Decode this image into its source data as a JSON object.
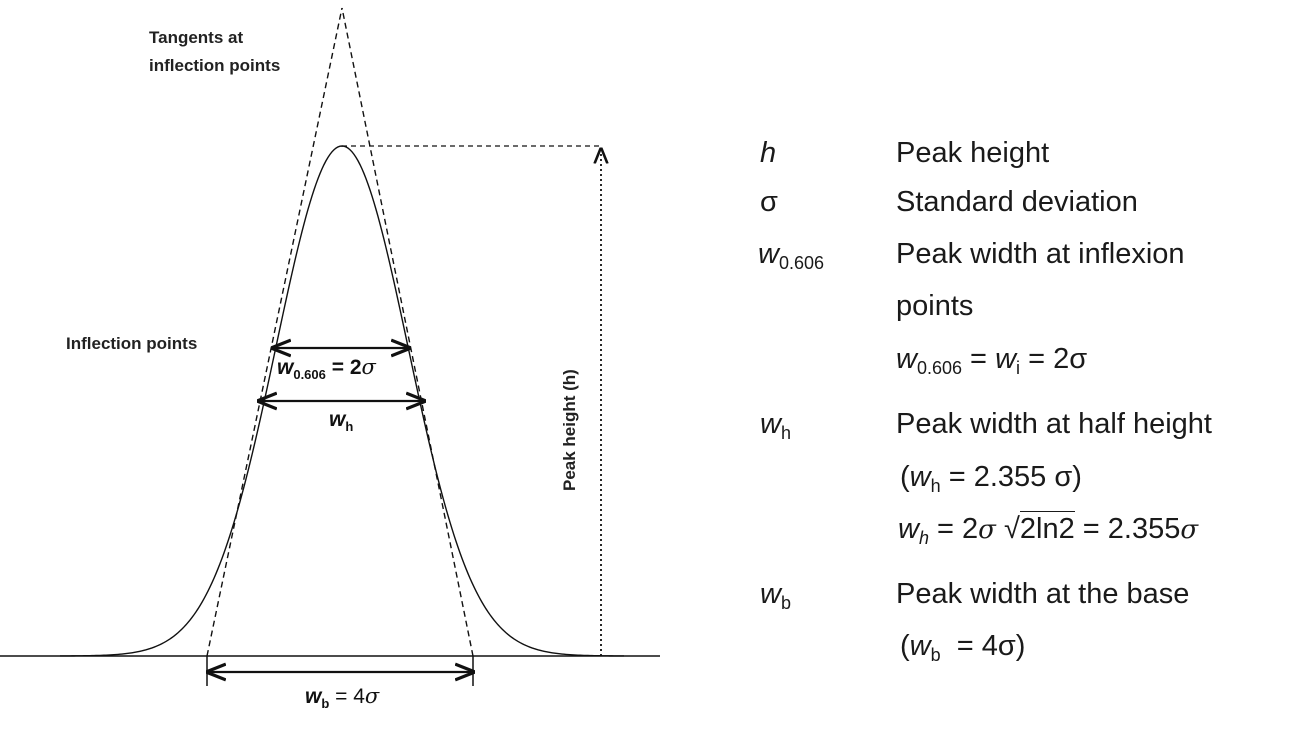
{
  "diagram": {
    "annotations": {
      "tangents_line1": "Tangents at",
      "tangents_line2": "inflection points",
      "inflection_points": "Inflection points",
      "peak_height_axis": "Peak height (h)"
    },
    "widths": {
      "w0606": {
        "sym": "w",
        "sub": "0.606",
        "rhs": " = 2",
        "sigma": "σ"
      },
      "wh": {
        "sym": "w",
        "sub": "h"
      },
      "wb": {
        "sym": "w",
        "sub": "b",
        "rhs": " = 4",
        "sigma": "σ"
      }
    }
  },
  "legend": {
    "h": {
      "symbol": "h",
      "text": "Peak height"
    },
    "sigma": {
      "symbol": "σ",
      "text": "Standard deviation"
    },
    "w0606": {
      "symbol": "w",
      "sub": "0.606",
      "text_line1": "Peak width at inflexion",
      "text_line2": "points",
      "eq_w": "w",
      "eq_sub": "0.606",
      "eq_mid": " = ",
      "eq_wi": "w",
      "eq_wi_sub": "i",
      "eq_end": " = 2σ"
    },
    "wh": {
      "symbol": "w",
      "sub": "h",
      "text_line1": "Peak width at half height",
      "paren_open": "(",
      "paren_w": "w",
      "paren_sub": "h",
      "paren_rest": " = 2.355 σ)",
      "formula_w": "w",
      "formula_sub": "h",
      "formula_mid": " = 2",
      "formula_sigma": "σ",
      "formula_sqrt": "√",
      "formula_radicand": "2ln2",
      "formula_end": " = 2.355",
      "formula_sigma2": "σ"
    },
    "wb": {
      "symbol": "w",
      "sub": "b",
      "text_line1": "Peak width at the base",
      "paren_open": "(",
      "paren_w": "w",
      "paren_sub": "b",
      "paren_rest": "  = 4σ)"
    }
  }
}
